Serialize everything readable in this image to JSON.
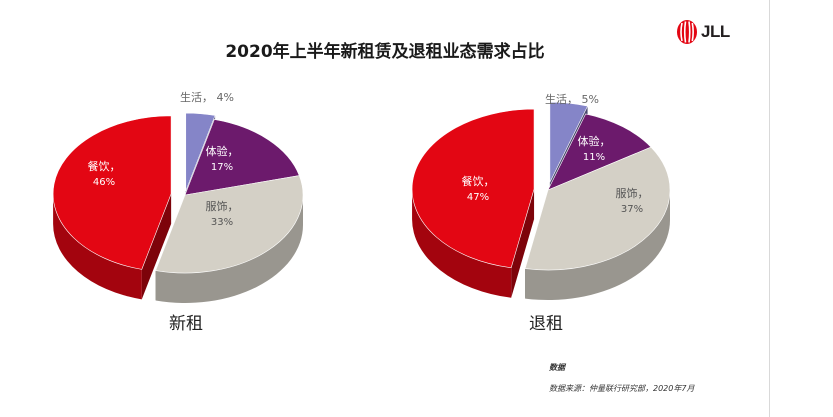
{
  "chart_data": [
    {
      "type": "pie",
      "title": "2020年上半年新租赁及退租业态需求占比",
      "name": "新租",
      "slices": [
        {
          "label": "生活，",
          "value": 4,
          "value_label": "4%",
          "color": "#8585c8"
        },
        {
          "label": "体验，",
          "value": 17,
          "value_label": "17%",
          "color": "#6c1a6c"
        },
        {
          "label": "服饰，",
          "value": 33,
          "value_label": "33%",
          "color": "#d4d0c6"
        },
        {
          "label": "餐饮，",
          "value": 46,
          "value_label": "46%",
          "color": "#e30613"
        }
      ]
    },
    {
      "type": "pie",
      "name": "退租",
      "slices": [
        {
          "label": "生活，",
          "value": 5,
          "value_label": "5%",
          "color": "#8585c8"
        },
        {
          "label": "体验，",
          "value": 11,
          "value_label": "11%",
          "color": "#6c1a6c"
        },
        {
          "label": "服饰，",
          "value": 37,
          "value_label": "37%",
          "color": "#d4d0c6"
        },
        {
          "label": "餐饮，",
          "value": 47,
          "value_label": "47%",
          "color": "#e30613"
        }
      ]
    }
  ],
  "labels": {
    "title": "2020年上半年新租赁及退租业态需求占比",
    "logo": "JLL",
    "left_chart": "新租",
    "right_chart": "退租",
    "note": "数据",
    "source": "数据来源：仲量联行研究部，2020年7月"
  },
  "icons": {
    "logo_mark": "jll-flame-icon"
  },
  "colors": {
    "brand": "#e30613"
  }
}
